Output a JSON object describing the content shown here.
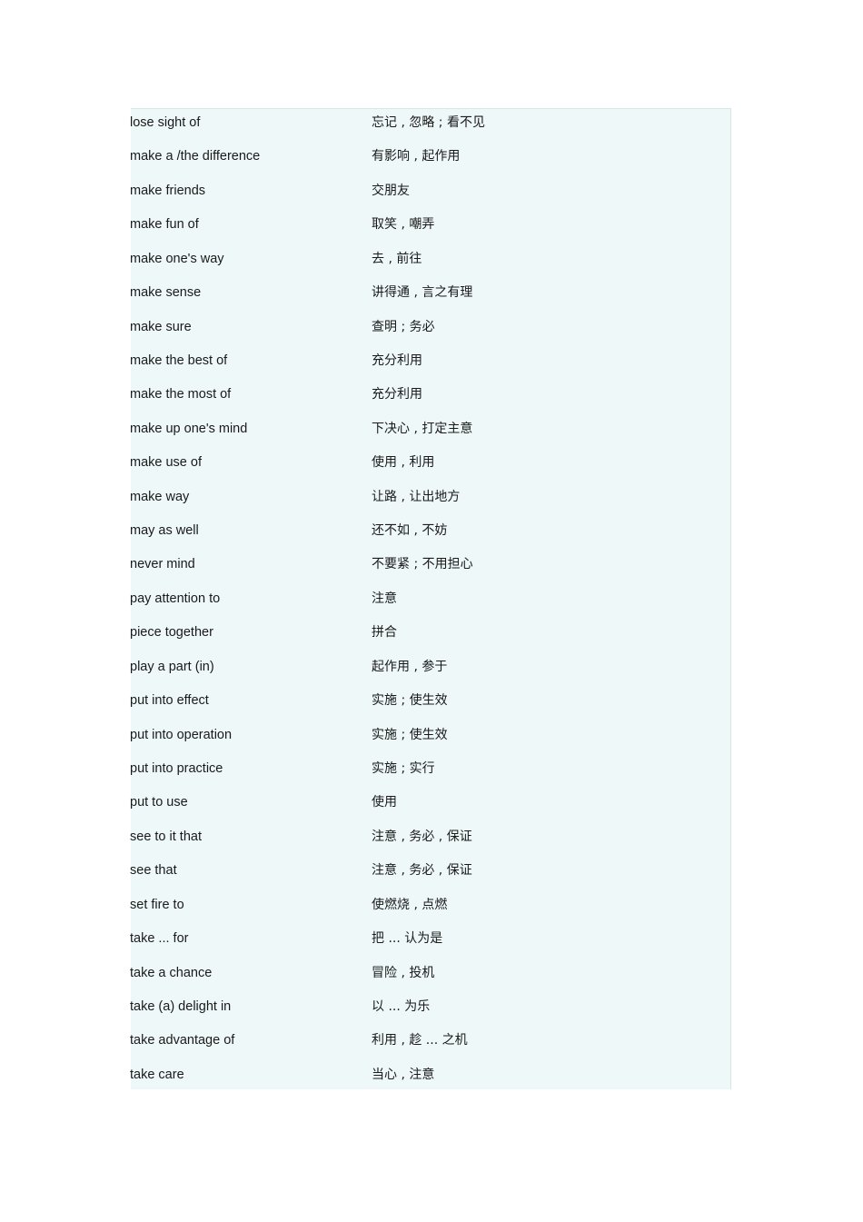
{
  "colors": {
    "table_background": "#eef8f9",
    "text": "#1a1a1a"
  },
  "entries": [
    {
      "en": "lose sight of",
      "zh": "忘记 , 忽略 ; 看不见"
    },
    {
      "en": "make a /the difference",
      "zh": "有影响 , 起作用"
    },
    {
      "en": "make friends",
      "zh": "交朋友"
    },
    {
      "en": "make fun of",
      "zh": "取笑 , 嘲弄"
    },
    {
      "en": "make one's way",
      "zh": "去 , 前往"
    },
    {
      "en": "make sense",
      "zh": "讲得通 , 言之有理"
    },
    {
      "en": "make sure",
      "zh": "查明 ; 务必"
    },
    {
      "en": "make the best of",
      "zh": "充分利用"
    },
    {
      "en": "make the most of",
      "zh": "充分利用"
    },
    {
      "en": "make up one's mind",
      "zh": "下决心 , 打定主意"
    },
    {
      "en": "make use of",
      "zh": "使用 , 利用"
    },
    {
      "en": "make way",
      "zh": "让路 , 让出地方"
    },
    {
      "en": "may as well",
      "zh": "还不如 , 不妨"
    },
    {
      "en": "never mind",
      "zh": "不要紧 ; 不用担心"
    },
    {
      "en": "pay attention to",
      "zh": "注意"
    },
    {
      "en": "piece together",
      "zh": "拼合"
    },
    {
      "en": "play a part (in)",
      "zh": "起作用 , 参于"
    },
    {
      "en": "put into effect",
      "zh": "实施 ; 使生效"
    },
    {
      "en": "put into operation",
      "zh": "实施 ; 使生效"
    },
    {
      "en": "put into practice",
      "zh": "实施 ; 实行"
    },
    {
      "en": "put to use",
      "zh": "使用"
    },
    {
      "en": "see to it that",
      "zh": "注意 , 务必 , 保证"
    },
    {
      "en": "see that",
      "zh": "注意 , 务必 , 保证"
    },
    {
      "en": "set fire to",
      "zh": "使燃烧 , 点燃"
    },
    {
      "en": "take ... for",
      "zh": "把 ... 认为是"
    },
    {
      "en": "take a chance",
      "zh": "冒险 , 投机"
    },
    {
      "en": "take (a) delight in",
      "zh": "以 ... 为乐"
    },
    {
      "en": "take advantage of",
      "zh": "利用 , 趁 ... 之机"
    },
    {
      "en": "take care",
      "zh": "当心 , 注意"
    }
  ]
}
